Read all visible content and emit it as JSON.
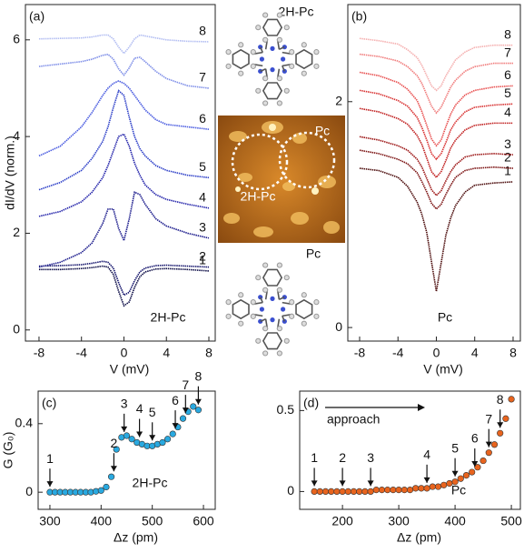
{
  "chart_data": [
    {
      "type": "line",
      "panel": "(a)",
      "annotation": "2H-Pc",
      "x_label": "V (mV)",
      "y_label": "dI/dV (norm.)",
      "xlim": [
        -9.28,
        8.6
      ],
      "ylim": [
        -0.23,
        6.73
      ],
      "xticks": [
        -8,
        -4,
        0,
        4,
        8
      ],
      "yticks": [
        0,
        2,
        4,
        6
      ],
      "x": [
        -8,
        -6,
        -4,
        -3,
        -2,
        -1.5,
        -1,
        -0.5,
        0,
        0.5,
        1,
        1.5,
        2,
        3,
        4,
        6,
        8
      ],
      "series": [
        {
          "name": "1",
          "color": "#0b0b45",
          "values": [
            1.25,
            1.25,
            1.27,
            1.29,
            1.32,
            1.3,
            1.15,
            0.8,
            0.5,
            0.58,
            0.88,
            1.1,
            1.2,
            1.26,
            1.27,
            1.25,
            1.22
          ]
        },
        {
          "name": "2",
          "color": "#14146c",
          "values": [
            1.32,
            1.33,
            1.35,
            1.38,
            1.42,
            1.4,
            1.28,
            0.98,
            0.72,
            0.78,
            1.02,
            1.2,
            1.28,
            1.33,
            1.34,
            1.32,
            1.3
          ]
        },
        {
          "name": "3",
          "color": "#1b1b8c",
          "values": [
            1.3,
            1.4,
            1.6,
            1.8,
            2.2,
            2.5,
            2.5,
            2.1,
            1.85,
            2.3,
            2.85,
            2.8,
            2.6,
            2.3,
            2.15,
            2.0,
            1.9
          ]
        },
        {
          "name": "4",
          "color": "#2424aa",
          "values": [
            2.35,
            2.45,
            2.65,
            2.85,
            3.15,
            3.4,
            3.7,
            4.0,
            4.05,
            3.8,
            3.45,
            3.2,
            3.0,
            2.8,
            2.7,
            2.6,
            2.52
          ]
        },
        {
          "name": "5",
          "color": "#2e40c8",
          "values": [
            2.9,
            3.05,
            3.3,
            3.55,
            3.9,
            4.2,
            4.6,
            4.95,
            4.85,
            4.4,
            4.0,
            3.75,
            3.6,
            3.4,
            3.3,
            3.2,
            3.15
          ]
        },
        {
          "name": "6",
          "color": "#4a5ce0",
          "values": [
            3.6,
            3.8,
            4.2,
            4.5,
            4.85,
            5.0,
            5.1,
            5.15,
            5.1,
            5.0,
            4.85,
            4.7,
            4.55,
            4.35,
            4.25,
            4.2,
            4.15
          ]
        },
        {
          "name": "7",
          "color": "#7f8fe8",
          "values": [
            5.45,
            5.5,
            5.55,
            5.6,
            5.68,
            5.7,
            5.6,
            5.4,
            5.27,
            5.42,
            5.62,
            5.64,
            5.55,
            5.35,
            5.2,
            5.05,
            5.0
          ]
        },
        {
          "name": "8",
          "color": "#b2bdf2",
          "values": [
            6.02,
            6.03,
            6.04,
            6.06,
            6.1,
            6.1,
            6.02,
            5.85,
            5.72,
            5.85,
            6.02,
            6.1,
            6.08,
            6.04,
            6.0,
            5.97,
            5.96
          ]
        }
      ]
    },
    {
      "type": "line",
      "panel": "(b)",
      "annotation": "Pc",
      "x_label": "V (mV)",
      "xlim": [
        -9.23,
        8.76
      ],
      "ylim": [
        -0.12,
        2.86
      ],
      "xticks": [
        -8,
        -4,
        0,
        4,
        8
      ],
      "yticks": [
        0,
        2
      ],
      "x": [
        -8,
        -6,
        -4,
        -3,
        -2,
        -1.5,
        -1,
        -0.5,
        0,
        0.5,
        1,
        1.5,
        2,
        3,
        4,
        6,
        8
      ],
      "series": [
        {
          "name": "1",
          "color": "#4a0a0a",
          "values": [
            1.41,
            1.39,
            1.33,
            1.25,
            1.11,
            1.0,
            0.84,
            0.58,
            0.32,
            0.57,
            0.82,
            0.97,
            1.08,
            1.2,
            1.26,
            1.28,
            1.29
          ]
        },
        {
          "name": "2",
          "color": "#7a1010",
          "values": [
            1.57,
            1.54,
            1.49,
            1.45,
            1.37,
            1.29,
            1.2,
            1.1,
            1.05,
            1.09,
            1.18,
            1.26,
            1.33,
            1.39,
            1.41,
            1.42,
            1.41
          ]
        },
        {
          "name": "3",
          "color": "#9c1515",
          "values": [
            1.69,
            1.66,
            1.61,
            1.57,
            1.49,
            1.42,
            1.32,
            1.22,
            1.17,
            1.21,
            1.3,
            1.38,
            1.44,
            1.51,
            1.53,
            1.54,
            1.53
          ]
        },
        {
          "name": "4",
          "color": "#c01e1e",
          "values": [
            1.94,
            1.91,
            1.85,
            1.8,
            1.7,
            1.62,
            1.5,
            1.38,
            1.33,
            1.38,
            1.48,
            1.59,
            1.66,
            1.75,
            1.79,
            1.81,
            1.81
          ]
        },
        {
          "name": "5",
          "color": "#d83232",
          "values": [
            2.1,
            2.07,
            2.01,
            1.96,
            1.86,
            1.77,
            1.66,
            1.54,
            1.49,
            1.54,
            1.64,
            1.75,
            1.82,
            1.91,
            1.95,
            1.97,
            1.98
          ]
        },
        {
          "name": "6",
          "color": "#e85050",
          "values": [
            2.26,
            2.23,
            2.17,
            2.11,
            2.01,
            1.91,
            1.79,
            1.67,
            1.61,
            1.66,
            1.78,
            1.89,
            1.97,
            2.06,
            2.1,
            2.13,
            2.14
          ]
        },
        {
          "name": "7",
          "color": "#f07c7c",
          "values": [
            2.42,
            2.4,
            2.36,
            2.31,
            2.23,
            2.16,
            2.06,
            1.96,
            1.9,
            1.95,
            2.04,
            2.13,
            2.19,
            2.27,
            2.31,
            2.34,
            2.34
          ]
        },
        {
          "name": "8",
          "color": "#f5b0b0",
          "values": [
            2.56,
            2.54,
            2.51,
            2.46,
            2.39,
            2.32,
            2.23,
            2.14,
            2.1,
            2.14,
            2.23,
            2.3,
            2.37,
            2.44,
            2.48,
            2.5,
            2.5
          ]
        }
      ]
    },
    {
      "type": "scatter",
      "panel": "(c)",
      "annotation": "2H-Pc",
      "x_label": "Δz (pm)",
      "y_label": "G (G₀)",
      "color": "#29a9e0",
      "xlim": [
        277,
        623
      ],
      "ylim": [
        -0.1,
        0.59
      ],
      "xticks": [
        300,
        400,
        500,
        600
      ],
      "yticks": [
        0,
        0.4
      ],
      "x": [
        300,
        310,
        320,
        330,
        340,
        350,
        360,
        370,
        380,
        390,
        400,
        410,
        420,
        430,
        440,
        450,
        460,
        470,
        480,
        490,
        500,
        510,
        520,
        530,
        540,
        550,
        560,
        570,
        580,
        590
      ],
      "values": [
        0,
        0,
        0,
        0,
        0,
        0,
        0,
        0,
        0,
        0.005,
        0.01,
        0.03,
        0.09,
        0.25,
        0.32,
        0.33,
        0.31,
        0.29,
        0.28,
        0.27,
        0.27,
        0.28,
        0.29,
        0.31,
        0.34,
        0.38,
        0.43,
        0.47,
        0.5,
        0.48
      ],
      "arrows": [
        {
          "label": "1",
          "x": 300
        },
        {
          "label": "2",
          "x": 425
        },
        {
          "label": "3",
          "x": 445
        },
        {
          "label": "4",
          "x": 475
        },
        {
          "label": "5",
          "x": 500
        },
        {
          "label": "6",
          "x": 545
        },
        {
          "label": "7",
          "x": 565
        },
        {
          "label": "8",
          "x": 590
        }
      ]
    },
    {
      "type": "scatter",
      "panel": "(d)",
      "annotation": "Pc",
      "x_label": "Δz (pm)",
      "note": "approach",
      "color": "#e8641e",
      "xlim": [
        124,
        516
      ],
      "ylim": [
        -0.11,
        0.62
      ],
      "xticks": [
        200,
        300,
        400,
        500
      ],
      "yticks": [
        0,
        0.5
      ],
      "x": [
        150,
        160,
        170,
        180,
        190,
        200,
        210,
        220,
        230,
        240,
        250,
        260,
        270,
        280,
        290,
        300,
        310,
        320,
        330,
        340,
        350,
        360,
        370,
        380,
        390,
        400,
        410,
        420,
        430,
        440,
        450,
        460,
        470,
        480,
        490,
        500
      ],
      "values": [
        0,
        0,
        0,
        0,
        0,
        0,
        0,
        0,
        0,
        0,
        0,
        0.01,
        0.01,
        0.01,
        0.01,
        0.01,
        0.01,
        0.01,
        0.02,
        0.02,
        0.02,
        0.03,
        0.03,
        0.04,
        0.05,
        0.06,
        0.08,
        0.1,
        0.12,
        0.15,
        0.19,
        0.24,
        0.29,
        0.36,
        0.45,
        0.57
      ],
      "arrows": [
        {
          "label": "1",
          "x": 150
        },
        {
          "label": "2",
          "x": 200
        },
        {
          "label": "3",
          "x": 250
        },
        {
          "label": "4",
          "x": 350
        },
        {
          "label": "5",
          "x": 400
        },
        {
          "label": "6",
          "x": 435
        },
        {
          "label": "7",
          "x": 460
        },
        {
          "label": "8",
          "x": 480
        }
      ]
    }
  ],
  "molecule_labels": [
    "2H-Pc",
    "Pc"
  ],
  "stm_image": {
    "labels": [
      "2H-Pc",
      "Pc"
    ]
  }
}
